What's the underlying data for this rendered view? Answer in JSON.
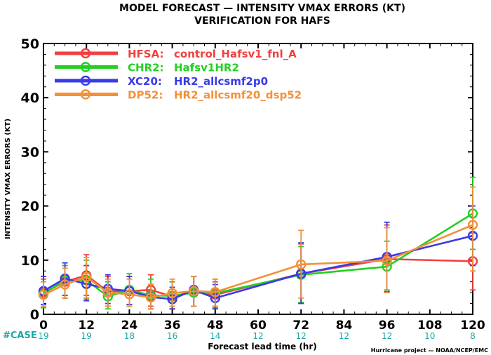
{
  "title_line1": "MODEL FORECAST — INTENSITY VMAX ERRORS (KT)",
  "title_line2": "VERIFICATION FOR HAFS",
  "xlabel": "Forecast lead time (hr)",
  "ylabel": "INTENSITY VMAX ERRORS (KT)",
  "case_label": "#CASE",
  "credit": "Hurricane project — NOAA/NCEP/EMC",
  "chart_data": {
    "type": "line",
    "x_ticks": [
      0,
      12,
      24,
      36,
      48,
      60,
      72,
      84,
      96,
      108,
      120
    ],
    "x_tick_labels": [
      "0",
      "12",
      "24",
      "36",
      "48",
      "60",
      "72",
      "84",
      "96",
      "108",
      "120"
    ],
    "xlim": [
      0,
      120
    ],
    "y_ticks": [
      0,
      10,
      20,
      30,
      40,
      50
    ],
    "y_tick_labels": [
      "0",
      "10",
      "20",
      "30",
      "40",
      "50"
    ],
    "ylim": [
      0,
      50
    ],
    "case_counts": [
      "19",
      "19",
      "18",
      "16",
      "14",
      "12",
      "12",
      "12",
      "12",
      "10",
      "8"
    ],
    "legend_position": "top-left",
    "series": [
      {
        "name": "HFSA:",
        "desc": "control_Hafsv1_fnl_A",
        "color": "#f04040",
        "x": [
          0,
          6,
          12,
          18,
          24,
          30,
          36,
          42,
          48,
          72,
          96,
          120
        ],
        "y": [
          4.0,
          6.0,
          7.2,
          4.2,
          4.3,
          4.5,
          3.3,
          4.2,
          3.6,
          7.5,
          10.2,
          9.8
        ],
        "err_low": [
          1.5,
          3.0,
          3.5,
          1.5,
          1.8,
          1.5,
          1.0,
          1.5,
          1.2,
          2.0,
          4.0,
          4.5
        ],
        "err_high": [
          6.5,
          9.0,
          11.0,
          7.0,
          7.0,
          7.3,
          6.0,
          7.0,
          6.0,
          13.0,
          16.5,
          15.0
        ]
      },
      {
        "name": "CHR2:",
        "desc": "Hafsv1HR2",
        "color": "#22d022",
        "x": [
          0,
          6,
          12,
          18,
          24,
          30,
          36,
          42,
          48,
          72,
          96,
          120
        ],
        "y": [
          3.8,
          6.3,
          6.3,
          3.3,
          4.5,
          3.5,
          3.4,
          4.0,
          3.9,
          7.3,
          8.8,
          18.6
        ],
        "err_low": [
          1.2,
          3.0,
          2.8,
          1.0,
          1.5,
          1.0,
          1.0,
          1.5,
          1.2,
          2.2,
          4.5,
          12.0
        ],
        "err_high": [
          6.0,
          9.0,
          10.0,
          6.0,
          7.5,
          6.5,
          6.0,
          7.0,
          6.5,
          12.5,
          13.5,
          25.3
        ]
      },
      {
        "name": "XC20:",
        "desc": "HR2_allcsmf2p0",
        "color": "#3a3ae8",
        "x": [
          0,
          6,
          12,
          18,
          24,
          30,
          36,
          42,
          48,
          72,
          96,
          120
        ],
        "y": [
          4.3,
          6.6,
          5.6,
          4.7,
          4.3,
          3.2,
          2.8,
          4.5,
          3.0,
          7.5,
          10.6,
          14.5
        ],
        "err_low": [
          1.8,
          3.5,
          2.5,
          2.0,
          1.8,
          1.0,
          1.0,
          1.5,
          1.0,
          2.0,
          4.2,
          9.0
        ],
        "err_high": [
          7.0,
          9.5,
          9.0,
          7.3,
          7.0,
          5.5,
          5.0,
          7.0,
          5.5,
          13.2,
          17.0,
          20.0
        ]
      },
      {
        "name": "DP52:",
        "desc": "HR2_allcsmf20_dsp52",
        "color": "#f39039",
        "x": [
          0,
          6,
          12,
          18,
          24,
          30,
          36,
          42,
          48,
          72,
          96,
          120
        ],
        "y": [
          3.6,
          5.5,
          6.9,
          4.0,
          3.7,
          3.1,
          3.9,
          4.3,
          4.1,
          9.2,
          9.9,
          16.5
        ],
        "err_low": [
          1.5,
          3.0,
          3.0,
          1.5,
          1.5,
          1.0,
          1.5,
          1.5,
          1.5,
          3.0,
          4.0,
          8.0
        ],
        "err_high": [
          6.0,
          8.5,
          10.5,
          6.5,
          6.5,
          5.5,
          6.5,
          7.0,
          6.5,
          15.5,
          16.0,
          23.5
        ]
      }
    ]
  }
}
